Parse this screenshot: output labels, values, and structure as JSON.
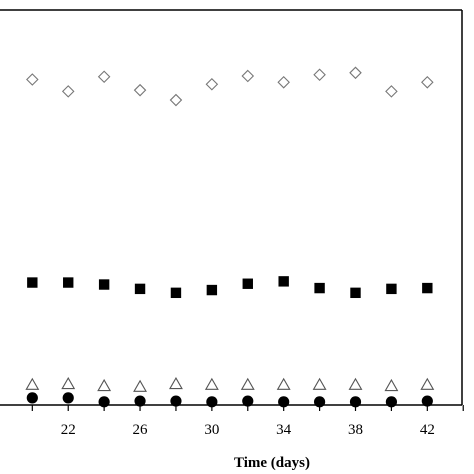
{
  "chart_data": {
    "type": "scatter",
    "xlabel": "Time (days)",
    "ylabel": "",
    "xlim": [
      18.2,
      44.6
    ],
    "ylim": [
      0,
      100
    ],
    "x_ticks": [
      20,
      22,
      24,
      26,
      28,
      30,
      32,
      34,
      36,
      38,
      40,
      42,
      44
    ],
    "x_tick_labels": [
      "22",
      "26",
      "30",
      "34",
      "38",
      "42"
    ],
    "grid": false,
    "legend": "none",
    "series": [
      {
        "marker": "open-diamond",
        "color": "#777777",
        "x": [
          20,
          22,
          24,
          26,
          28,
          30,
          32,
          34,
          36,
          38,
          40,
          42
        ],
        "y": [
          82.4,
          79.4,
          83.1,
          79.7,
          77.2,
          81.2,
          83.3,
          81.7,
          83.6,
          84.1,
          79.4,
          81.7
        ]
      },
      {
        "marker": "filled-square",
        "color": "#000000",
        "x": [
          20,
          22,
          24,
          26,
          28,
          30,
          32,
          34,
          36,
          38,
          40,
          42
        ],
        "y": [
          31.0,
          31.0,
          30.5,
          29.4,
          28.4,
          29.1,
          30.7,
          31.3,
          29.6,
          28.4,
          29.4,
          29.6
        ]
      },
      {
        "marker": "open-triangle",
        "color": "#555555",
        "x": [
          20,
          22,
          24,
          26,
          28,
          30,
          32,
          34,
          36,
          38,
          40,
          42
        ],
        "y": [
          5.1,
          5.3,
          4.8,
          4.6,
          5.3,
          5.1,
          5.1,
          5.1,
          5.1,
          5.1,
          4.8,
          5.1
        ]
      },
      {
        "marker": "filled-circle",
        "color": "#000000",
        "x": [
          20,
          22,
          24,
          26,
          28,
          30,
          32,
          34,
          36,
          38,
          40,
          42
        ],
        "y": [
          1.8,
          1.8,
          0.8,
          1.0,
          1.0,
          0.8,
          1.0,
          0.8,
          0.8,
          0.8,
          0.8,
          1.0
        ]
      }
    ]
  }
}
